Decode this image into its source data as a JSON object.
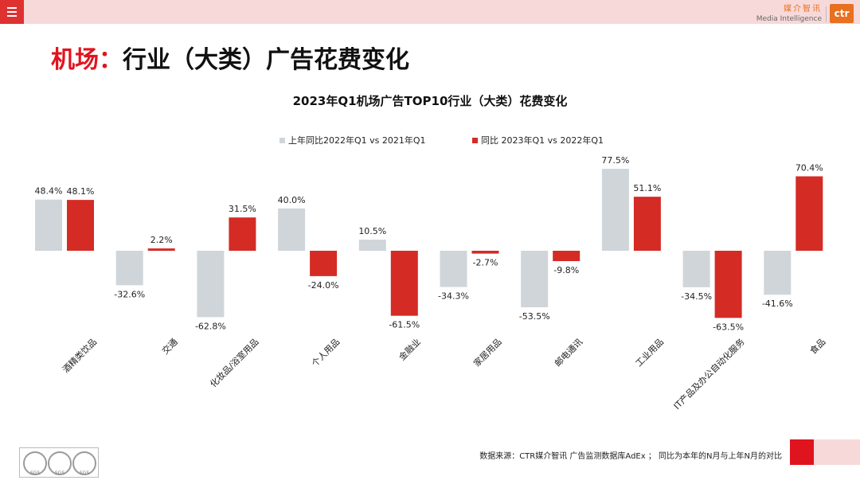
{
  "header": {
    "menu_icon": "hamburger-menu-icon",
    "brand_cn": "媒介智讯",
    "brand_en": "Media Intelligence",
    "brand_logo": "ctr"
  },
  "page": {
    "title_prefix": "机场：",
    "title_rest": "行业（大类）广告花费变化"
  },
  "footer": {
    "source": "数据来源：CTR媒介智讯 广告监测数据库AdEx ； 同比为本年的N月与上年N月的对比",
    "cert_labels": [
      "SGS",
      "SGS",
      "SGS"
    ]
  },
  "colors": {
    "accent": "#e0141e",
    "prev_series": "#cfd5d9",
    "curr_series": "#d42b25"
  },
  "chart_data": {
    "type": "bar",
    "title": "2023年Q1机场广告TOP10行业（大类）花费变化",
    "categories": [
      "酒精类饮品",
      "交通",
      "化妆品/浴室用品",
      "个人用品",
      "金融业",
      "家居用品",
      "邮电通讯",
      "工业用品",
      "IT产品及办公自动化服务",
      "食品"
    ],
    "series": [
      {
        "name": "上年同比2022年Q1  vs  2021年Q1",
        "values": [
          48.4,
          -32.6,
          -62.8,
          40.0,
          10.5,
          -34.3,
          -53.5,
          77.5,
          -34.5,
          -41.6
        ]
      },
      {
        "name": "同比 2023年Q1  vs  2022年Q1",
        "values": [
          48.1,
          2.2,
          31.5,
          -24.0,
          -61.5,
          -2.7,
          -9.8,
          51.1,
          -63.5,
          70.4
        ]
      }
    ],
    "value_labels": [
      [
        "48.4%",
        "-32.6%",
        "-62.8%",
        "40.0%",
        "10.5%",
        "-34.3%",
        "-53.5%",
        "77.5%",
        "-34.5%",
        "-41.6%"
      ],
      [
        "48.1%",
        "2.2%",
        "31.5%",
        "-24.0%",
        "-61.5%",
        "-2.7%",
        "-9.8%",
        "51.1%",
        "-63.5%",
        "70.4%"
      ]
    ],
    "unit": "%",
    "grid": false,
    "legend_position": "top"
  }
}
